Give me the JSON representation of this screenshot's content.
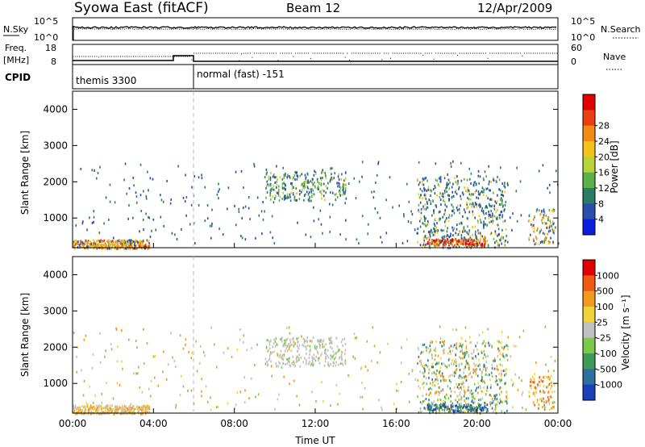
{
  "header": {
    "title": "Syowa East (fitACF)",
    "beam": "Beam 12",
    "date": "12/Apr/2009"
  },
  "panels": {
    "noise": {
      "left_label": "N.Sky",
      "right_label": "N.Search",
      "left_ticks": [
        "10^5",
        "10^0"
      ],
      "right_ticks": [
        "10^5",
        "10^0"
      ]
    },
    "freq": {
      "left_label_line1": "Freq.",
      "left_label_line2": "[MHz]",
      "right_label": "Nave",
      "left_ticks": [
        "18",
        "8"
      ],
      "right_ticks": [
        "60",
        "0"
      ]
    },
    "cpid": {
      "label": "CPID",
      "modes": [
        {
          "name": "themis 3300",
          "start_hour": 0,
          "end_hour": 6
        },
        {
          "name": "normal (fast) -151",
          "start_hour": 6,
          "end_hour": 24
        }
      ]
    }
  },
  "chart_data": [
    {
      "type": "heatmap",
      "title": "",
      "xlabel": "Time UT",
      "ylabel": "Slant Range [km]",
      "xlim": [
        0,
        24
      ],
      "ylim": [
        180,
        4500
      ],
      "x_ticks": [
        "00:00",
        "04:00",
        "08:00",
        "12:00",
        "16:00",
        "20:00",
        "00:00"
      ],
      "y_ticks": [
        "1000",
        "2000",
        "3000",
        "4000"
      ],
      "colorbar": {
        "label": "Power [dB]",
        "ticks": [
          "4",
          "8",
          "12",
          "16",
          "20",
          "24",
          "28"
        ],
        "colors": [
          "#0b1ee0",
          "#2a4fa8",
          "#2f7a62",
          "#5bb04a",
          "#b6d33a",
          "#f6c21a",
          "#f28a14",
          "#e8400e",
          "#e00000"
        ]
      }
    },
    {
      "type": "heatmap",
      "title": "",
      "xlabel": "Time UT",
      "ylabel": "Slant Range [km]",
      "xlim": [
        0,
        24
      ],
      "ylim": [
        180,
        4500
      ],
      "x_ticks": [
        "00:00",
        "04:00",
        "08:00",
        "12:00",
        "16:00",
        "20:00",
        "00:00"
      ],
      "y_ticks": [
        "1000",
        "2000",
        "3000",
        "4000"
      ],
      "colorbar": {
        "label": "Velocity [m s⁻¹]",
        "ticks": [
          "1000",
          "500",
          "100",
          "25",
          "-25",
          "-100",
          "-500",
          "-1000"
        ],
        "colors": [
          "#1a3fb8",
          "#2f6fa0",
          "#3f9a5a",
          "#7cc84a",
          "#c0c0c0",
          "#f2d23a",
          "#f09a20",
          "#ee5a10",
          "#e00000"
        ]
      }
    }
  ]
}
